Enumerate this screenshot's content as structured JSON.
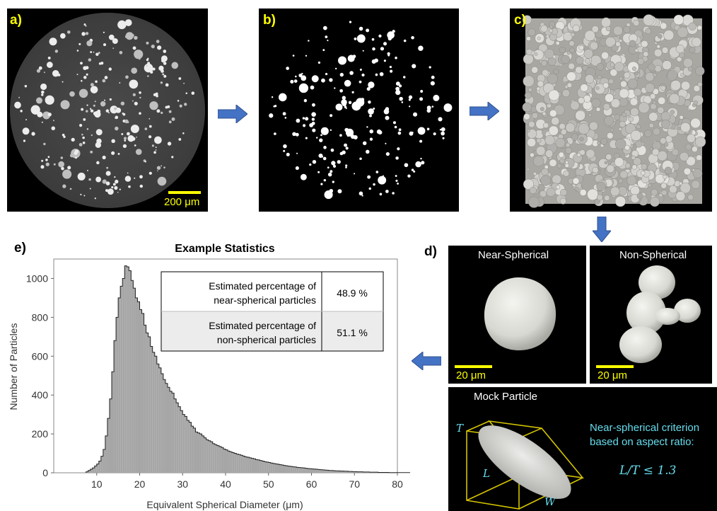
{
  "panels": {
    "a": {
      "label": "a)",
      "scale_label": "200 μm"
    },
    "b": {
      "label": "b)"
    },
    "c": {
      "label": "c)"
    },
    "d": {
      "label": "d)",
      "near_title": "Near-Spherical",
      "non_title": "Non-Spherical",
      "near_scale": "20 μm",
      "non_scale": "20 μm",
      "mock_title": "Mock Particle",
      "dim_T": "T",
      "dim_L": "L",
      "dim_W": "W",
      "criterion_line1": "Near-spherical criterion",
      "criterion_line2": "based on aspect ratio:",
      "criterion_formula": "L/T ≤ 1.3"
    },
    "e": {
      "label": "e)"
    }
  },
  "colors": {
    "arrow": "#4472c4",
    "scale": "#ffff00",
    "criterion": "#66ddee",
    "hist_fill": "#a6a6a6",
    "box_yellow": "#d4c400"
  },
  "chart_data": {
    "type": "bar",
    "title": "Example Statistics",
    "xlabel": "Equivalent Spherical Diameter (μm)",
    "ylabel": "Number of Particles",
    "xlim": [
      0,
      80
    ],
    "ylim": [
      0,
      1100
    ],
    "xticks": [
      10,
      20,
      30,
      40,
      50,
      60,
      70,
      80
    ],
    "yticks": [
      0,
      200,
      400,
      600,
      800,
      1000
    ],
    "bin_width": 0.5,
    "x_start": 7.5,
    "values": [
      5,
      12,
      18,
      25,
      35,
      45,
      60,
      85,
      120,
      190,
      280,
      380,
      520,
      680,
      800,
      900,
      960,
      1000,
      1065,
      1060,
      1040,
      990,
      950,
      900,
      880,
      840,
      820,
      760,
      720,
      700,
      650,
      620,
      600,
      560,
      540,
      510,
      480,
      460,
      440,
      420,
      410,
      380,
      360,
      340,
      320,
      300,
      290,
      270,
      260,
      240,
      230,
      210,
      205,
      200,
      190,
      180,
      170,
      165,
      160,
      150,
      145,
      140,
      135,
      130,
      122,
      118,
      112,
      108,
      104,
      100,
      96,
      94,
      90,
      86,
      82,
      80,
      77,
      74,
      72,
      68,
      66,
      63,
      60,
      57,
      55,
      53,
      50,
      48,
      46,
      44,
      42,
      40,
      38,
      36,
      34,
      33,
      31,
      30,
      28,
      27,
      26,
      25,
      23,
      22,
      21,
      20,
      19,
      18,
      17,
      16,
      15,
      14,
      13,
      12,
      12,
      11,
      10,
      10,
      9,
      9,
      8,
      8,
      7,
      7,
      6,
      6,
      5,
      5,
      5,
      4,
      4,
      4,
      3,
      3,
      3,
      3,
      2,
      2,
      2,
      2,
      2,
      1,
      1,
      1,
      1,
      1,
      1,
      1,
      1,
      1,
      1,
      1,
      0,
      1,
      0,
      1,
      0,
      1,
      0,
      0,
      1,
      0,
      0,
      0,
      0,
      0,
      0,
      0
    ],
    "table": [
      {
        "label_line1": "Estimated percentage of",
        "label_line2": "near-spherical particles",
        "value": "48.9 %"
      },
      {
        "label_line1": "Estimated percentage of",
        "label_line2": "non-spherical particles",
        "value": "51.1 %"
      }
    ]
  }
}
